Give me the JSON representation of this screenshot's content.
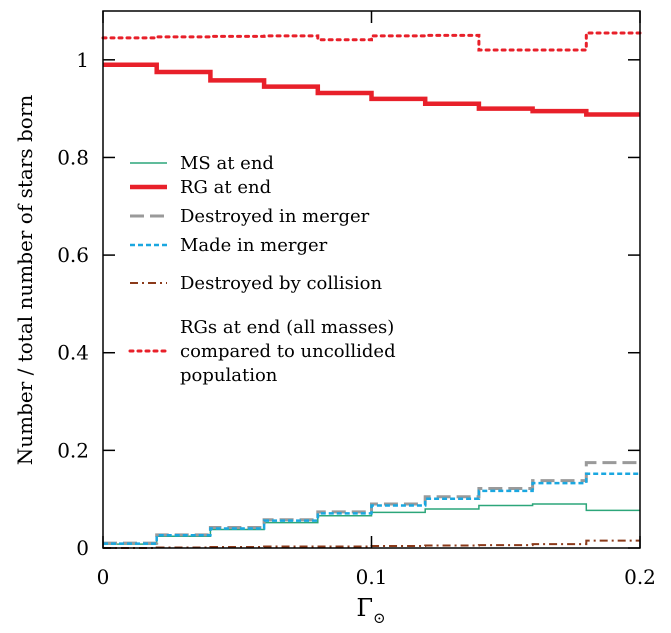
{
  "chart_data": {
    "type": "line",
    "xlabel": "Γ",
    "xlabel_subscript": "⊙",
    "ylabel": "Number / total number of stars born",
    "xlim": [
      0,
      0.2
    ],
    "ylim": [
      0,
      1.1
    ],
    "x_ticks": [
      0,
      0.1,
      0.2
    ],
    "x_tick_labels": [
      "0",
      "0.1",
      "0.2"
    ],
    "y_ticks": [
      0,
      0.2,
      0.4,
      0.6,
      0.8,
      1.0
    ],
    "y_tick_labels": [
      "0",
      "0.2",
      "0.4",
      "0.6",
      "0.8",
      "1"
    ],
    "grid": false,
    "legend_position": "left",
    "bin_edges": [
      0,
      0.02,
      0.04,
      0.06,
      0.08,
      0.1,
      0.12,
      0.14,
      0.16,
      0.18,
      0.2
    ],
    "series": [
      {
        "name": "MS at end",
        "legend_lines": [
          "MS at end"
        ],
        "style": "solid",
        "color": "#2ca67a",
        "width": 1.5,
        "values": [
          0.008,
          0.024,
          0.038,
          0.052,
          0.066,
          0.073,
          0.08,
          0.087,
          0.09,
          0.077
        ]
      },
      {
        "name": "RG at end",
        "legend_lines": [
          "RG at end"
        ],
        "style": "solid",
        "color": "#e8202a",
        "width": 4.5,
        "values": [
          0.99,
          0.975,
          0.958,
          0.945,
          0.932,
          0.92,
          0.91,
          0.9,
          0.895,
          0.888
        ]
      },
      {
        "name": "Destroyed in merger",
        "legend_lines": [
          "Destroyed in merger"
        ],
        "style": "dashed",
        "color": "#9a9a9a",
        "width": 3,
        "values": [
          0.01,
          0.027,
          0.042,
          0.058,
          0.074,
          0.09,
          0.105,
          0.122,
          0.138,
          0.175
        ]
      },
      {
        "name": "Made in merger",
        "legend_lines": [
          "Made in merger"
        ],
        "style": "dotted-dense",
        "color": "#1aa7e0",
        "width": 2.5,
        "values": [
          0.009,
          0.026,
          0.04,
          0.056,
          0.071,
          0.087,
          0.101,
          0.117,
          0.133,
          0.152
        ]
      },
      {
        "name": "Destroyed by collision",
        "legend_lines": [
          "Destroyed by collision"
        ],
        "style": "dashdot",
        "color": "#8b3a1a",
        "width": 2,
        "values": [
          0.0,
          0.001,
          0.002,
          0.003,
          0.003,
          0.004,
          0.005,
          0.006,
          0.008,
          0.015
        ]
      },
      {
        "name": "RGs at end (all masses) compared to uncollided population",
        "legend_lines": [
          "RGs at end (all masses)",
          "compared to uncollided",
          "population"
        ],
        "style": "dotted",
        "color": "#e8202a",
        "width": 3,
        "values": [
          1.045,
          1.047,
          1.048,
          1.049,
          1.041,
          1.049,
          1.05,
          1.02,
          1.02,
          1.055
        ]
      }
    ]
  }
}
